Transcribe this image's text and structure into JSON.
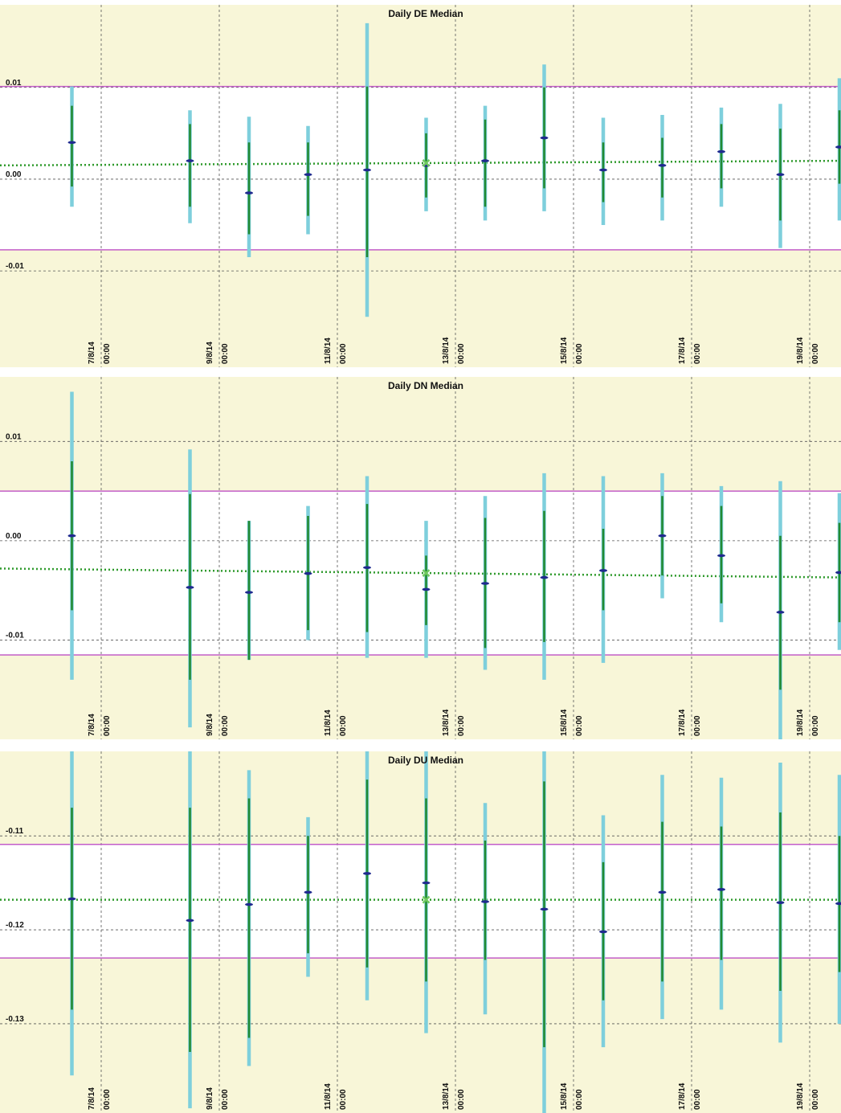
{
  "chart_data": [
    {
      "type": "scatter",
      "title": "Daily DE Median",
      "xlabel": "",
      "ylabel": "",
      "x_tick_labels": [
        "7/8/14 00:00",
        "9/8/14 00:00",
        "11/8/14 00:00",
        "13/8/14 00:00",
        "15/8/14 00:00",
        "17/8/14 00:00",
        "19/8/14 00:00"
      ],
      "y_ticks": [
        0.01,
        0.0,
        -0.01
      ],
      "y_tick_labels": [
        "0.01",
        "0.00",
        "-0.01"
      ],
      "ylim": [
        -0.0205,
        0.019
      ],
      "reference_lines": [
        0.0101,
        -0.0077
      ],
      "trend": [
        0.0015,
        0.002
      ],
      "shaded_outside_limits": true,
      "grid": true,
      "series": [
        {
          "x": 1,
          "median": 0.004,
          "inner": [
            0.008,
            -0.0008
          ],
          "outer": [
            0.0101,
            -0.003
          ]
        },
        {
          "x": 3,
          "median": 0.002,
          "inner": [
            0.006,
            -0.003
          ],
          "outer": [
            0.0075,
            -0.0048
          ]
        },
        {
          "x": 4,
          "median": -0.0015,
          "inner": [
            0.004,
            -0.006
          ],
          "outer": [
            0.0068,
            -0.0085
          ]
        },
        {
          "x": 5,
          "median": 0.0005,
          "inner": [
            0.004,
            -0.004
          ],
          "outer": [
            0.0058,
            -0.006
          ]
        },
        {
          "x": 6,
          "median": 0.001,
          "inner": [
            0.0101,
            -0.0085
          ],
          "outer": [
            0.017,
            -0.015
          ]
        },
        {
          "x": 7,
          "median": 0.0015,
          "inner": [
            0.005,
            -0.002
          ],
          "outer": [
            0.0067,
            -0.0035
          ]
        },
        {
          "x": 8,
          "median": 0.002,
          "inner": [
            0.0065,
            -0.003
          ],
          "outer": [
            0.008,
            -0.0045
          ]
        },
        {
          "x": 9,
          "median": 0.0045,
          "inner": [
            0.01,
            -0.001
          ],
          "outer": [
            0.0125,
            -0.0035
          ]
        },
        {
          "x": 10,
          "median": 0.001,
          "inner": [
            0.004,
            -0.0025
          ],
          "outer": [
            0.0067,
            -0.005
          ]
        },
        {
          "x": 11,
          "median": 0.0015,
          "inner": [
            0.0045,
            -0.002
          ],
          "outer": [
            0.007,
            -0.0045
          ]
        },
        {
          "x": 12,
          "median": 0.003,
          "inner": [
            0.006,
            -0.001
          ],
          "outer": [
            0.0078,
            -0.003
          ]
        },
        {
          "x": 13,
          "median": 0.0005,
          "inner": [
            0.0055,
            -0.0045
          ],
          "outer": [
            0.0082,
            -0.0075
          ]
        },
        {
          "x": 14,
          "median": 0.0035,
          "inner": [
            0.0075,
            -0.0005
          ],
          "outer": [
            0.011,
            -0.0045
          ]
        }
      ]
    },
    {
      "type": "scatter",
      "title": "Daily DN Median",
      "xlabel": "",
      "ylabel": "",
      "x_tick_labels": [
        "7/8/14 00:00",
        "9/8/14 00:00",
        "11/8/14 00:00",
        "13/8/14 00:00",
        "15/8/14 00:00",
        "17/8/14 00:00",
        "19/8/14 00:00"
      ],
      "y_ticks": [
        0.01,
        0.0,
        -0.01
      ],
      "y_tick_labels": [
        "0.01",
        "0.00",
        "-0.01"
      ],
      "ylim": [
        -0.02,
        0.0165
      ],
      "reference_lines": [
        0.005,
        -0.0115
      ],
      "trend": [
        -0.0028,
        -0.0037
      ],
      "shaded_outside_limits": true,
      "grid": true,
      "series": [
        {
          "x": 1,
          "median": 0.0005,
          "inner": [
            0.008,
            -0.007
          ],
          "outer": [
            0.015,
            -0.014
          ]
        },
        {
          "x": 3,
          "median": -0.0047,
          "inner": [
            0.0047,
            -0.014
          ],
          "outer": [
            0.0092,
            -0.0188
          ]
        },
        {
          "x": 4,
          "median": -0.0052,
          "inner": [
            0.002,
            -0.012
          ],
          "outer": [
            0.002,
            -0.012
          ]
        },
        {
          "x": 5,
          "median": -0.0033,
          "inner": [
            0.0025,
            -0.009
          ],
          "outer": [
            0.0035,
            -0.01
          ]
        },
        {
          "x": 6,
          "median": -0.0027,
          "inner": [
            0.0037,
            -0.0092
          ],
          "outer": [
            0.0065,
            -0.0118
          ]
        },
        {
          "x": 7,
          "median": -0.0049,
          "inner": [
            -0.0015,
            -0.0085
          ],
          "outer": [
            0.002,
            -0.0118
          ]
        },
        {
          "x": 8,
          "median": -0.0043,
          "inner": [
            0.0023,
            -0.0108
          ],
          "outer": [
            0.0045,
            -0.013
          ]
        },
        {
          "x": 9,
          "median": -0.0037,
          "inner": [
            0.003,
            -0.0102
          ],
          "outer": [
            0.0068,
            -0.014
          ]
        },
        {
          "x": 10,
          "median": -0.003,
          "inner": [
            0.0012,
            -0.007
          ],
          "outer": [
            0.0065,
            -0.0123
          ]
        },
        {
          "x": 11,
          "median": 0.0005,
          "inner": [
            0.0045,
            -0.0035
          ],
          "outer": [
            0.0068,
            -0.0058
          ]
        },
        {
          "x": 12,
          "median": -0.0015,
          "inner": [
            0.0035,
            -0.0063
          ],
          "outer": [
            0.0055,
            -0.0082
          ]
        },
        {
          "x": 13,
          "median": -0.0072,
          "inner": [
            0.0005,
            -0.015
          ],
          "outer": [
            0.006,
            -0.02
          ]
        },
        {
          "x": 14,
          "median": -0.0032,
          "inner": [
            0.0018,
            -0.0082
          ],
          "outer": [
            0.0048,
            -0.011
          ]
        }
      ]
    },
    {
      "type": "scatter",
      "title": "Daily DU Median",
      "xlabel": "",
      "ylabel": "",
      "x_tick_labels": [
        "7/8/14 00:00",
        "9/8/14 00:00",
        "11/8/14 00:00",
        "13/8/14 00:00",
        "15/8/14 00:00",
        "17/8/14 00:00",
        "19/8/14 00:00"
      ],
      "y_ticks": [
        -0.11,
        -0.12,
        -0.13
      ],
      "y_tick_labels": [
        "-0.11",
        "-0.12",
        "-0.13"
      ],
      "ylim": [
        -0.1395,
        -0.101
      ],
      "reference_lines": [
        -0.1109,
        -0.123
      ],
      "trend": [
        -0.1168,
        -0.1168
      ],
      "shaded_outside_limits": true,
      "grid": true,
      "series": [
        {
          "x": 1,
          "median": -0.1167,
          "inner": [
            -0.107,
            -0.1285
          ],
          "outer": [
            -0.101,
            -0.1355
          ]
        },
        {
          "x": 3,
          "median": -0.119,
          "inner": [
            -0.107,
            -0.133
          ],
          "outer": [
            -0.101,
            -0.139
          ]
        },
        {
          "x": 4,
          "median": -0.1173,
          "inner": [
            -0.106,
            -0.1315
          ],
          "outer": [
            -0.103,
            -0.1345
          ]
        },
        {
          "x": 5,
          "median": -0.116,
          "inner": [
            -0.11,
            -0.1225
          ],
          "outer": [
            -0.108,
            -0.125
          ]
        },
        {
          "x": 6,
          "median": -0.114,
          "inner": [
            -0.104,
            -0.124
          ],
          "outer": [
            -0.101,
            -0.1275
          ]
        },
        {
          "x": 7,
          "median": -0.115,
          "inner": [
            -0.106,
            -0.1255
          ],
          "outer": [
            -0.101,
            -0.131
          ]
        },
        {
          "x": 8,
          "median": -0.117,
          "inner": [
            -0.1105,
            -0.1232
          ],
          "outer": [
            -0.1065,
            -0.129
          ]
        },
        {
          "x": 9,
          "median": -0.1178,
          "inner": [
            -0.1042,
            -0.1325
          ],
          "outer": [
            -0.101,
            -0.1395
          ]
        },
        {
          "x": 10,
          "median": -0.1202,
          "inner": [
            -0.1128,
            -0.1275
          ],
          "outer": [
            -0.1078,
            -0.1325
          ]
        },
        {
          "x": 11,
          "median": -0.116,
          "inner": [
            -0.1085,
            -0.1255
          ],
          "outer": [
            -0.1035,
            -0.1295
          ]
        },
        {
          "x": 12,
          "median": -0.1157,
          "inner": [
            -0.109,
            -0.1232
          ],
          "outer": [
            -0.1038,
            -0.1285
          ]
        },
        {
          "x": 13,
          "median": -0.1171,
          "inner": [
            -0.1075,
            -0.1265
          ],
          "outer": [
            -0.1022,
            -0.132
          ]
        },
        {
          "x": 14,
          "median": -0.1172,
          "inner": [
            -0.11,
            -0.1245
          ],
          "outer": [
            -0.1035,
            -0.13
          ]
        }
      ]
    }
  ],
  "colors": {
    "shade": "#f8f6d8",
    "plot_bg": "#ffffff",
    "limit_line": "#c35ec8",
    "outer_bar": "#7ecfdc",
    "inner_bar": "#218a32",
    "median_mark": "#1f2a8f",
    "trend_line": "#2f9a2c",
    "grid": "#555555",
    "current_marker": "#6ec85c"
  }
}
